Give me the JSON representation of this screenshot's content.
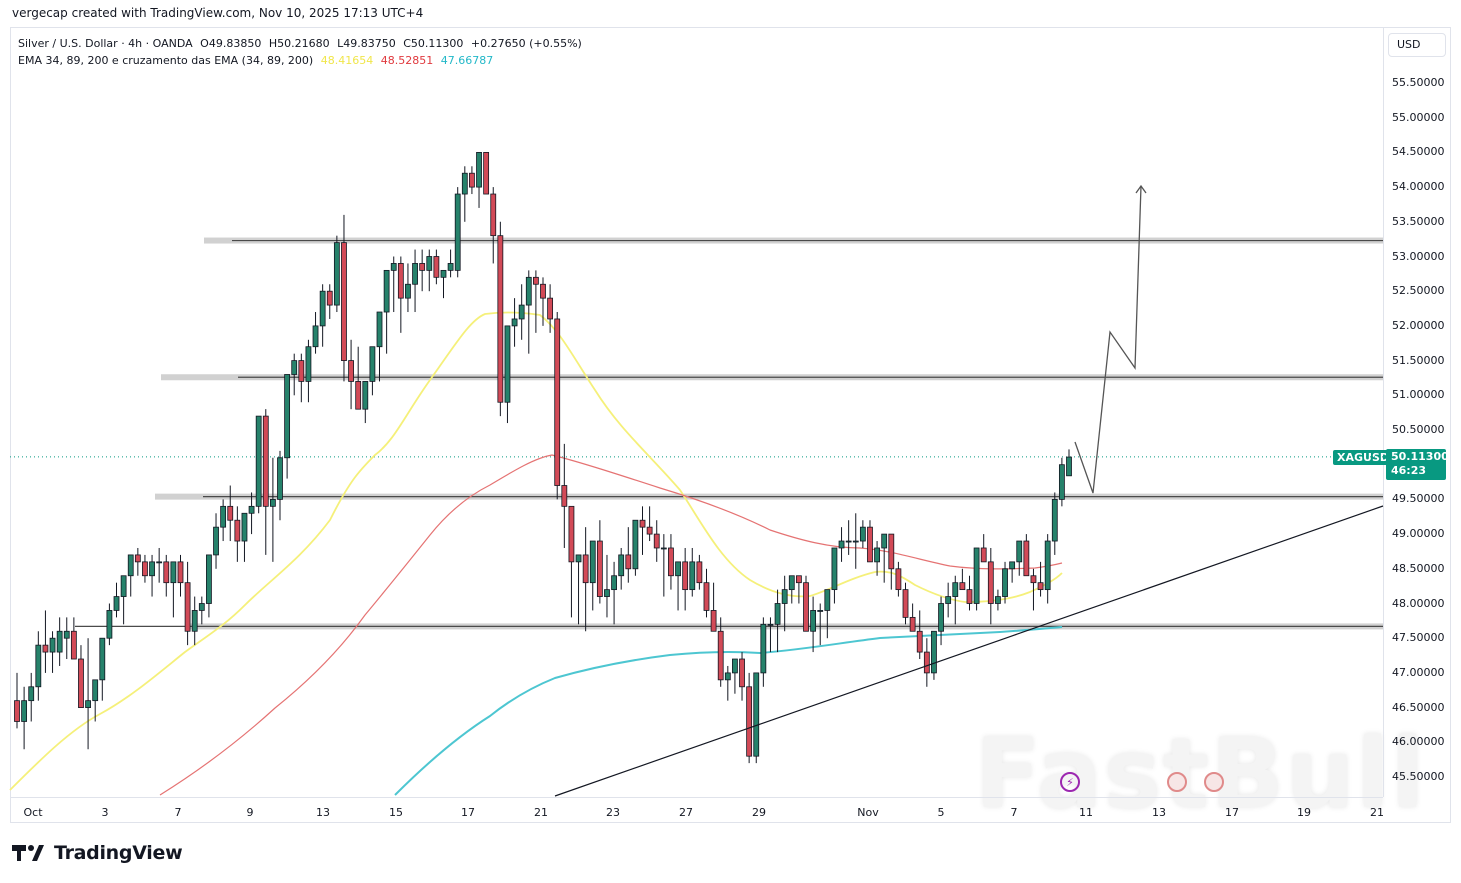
{
  "header": {
    "credit": "vergecap created with TradingView.com, Nov 10, 2025 17:13 UTC+4"
  },
  "legend": {
    "symbol_line": "Silver / U.S. Dollar · 4h · OANDA",
    "open": "O49.83850",
    "high": "H50.21680",
    "low": "L49.83750",
    "close": "C50.11300",
    "change": "+0.27650 (+0.55%)",
    "indicator_name": "EMA 34, 89, 200 e cruzamento das EMA (34, 89, 200)",
    "ema34_value": "48.41654",
    "ema89_value": "48.52851",
    "ema200_value": "47.66787"
  },
  "colors": {
    "up": "#26826b",
    "down": "#d24a57",
    "ema34": "#f5f07a",
    "ema89": "#e57373",
    "ema200": "#4dc6d1",
    "accent": "#089981"
  },
  "price_axis": {
    "currency_button": "USD",
    "ticks": [
      "55.50000",
      "55.00000",
      "54.50000",
      "54.00000",
      "53.50000",
      "53.00000",
      "52.50000",
      "52.00000",
      "51.50000",
      "51.00000",
      "50.50000",
      "49.50000",
      "49.00000",
      "48.50000",
      "48.00000",
      "47.50000",
      "47.00000",
      "46.50000",
      "46.00000",
      "45.50000"
    ],
    "symbol_tag": "XAGUSD",
    "last_price": "50.11300",
    "countdown": "46:23"
  },
  "time_axis": {
    "ticks": [
      "Oct",
      "3",
      "7",
      "9",
      "13",
      "15",
      "17",
      "21",
      "23",
      "27",
      "29",
      "Nov",
      "5",
      "7",
      "11",
      "13",
      "17",
      "19",
      "21"
    ]
  },
  "branding": {
    "logo_text": "TradingView",
    "watermark": "FastBull"
  },
  "chart_data": {
    "type": "candlestick",
    "title": "Silver / U.S. Dollar · 4h · OANDA",
    "xlabel": "",
    "ylabel": "USD",
    "ylim": [
      45.3,
      55.8
    ],
    "x_ticks": [
      "Oct",
      "3",
      "7",
      "9",
      "13",
      "15",
      "17",
      "21",
      "23",
      "27",
      "29",
      "Nov",
      "5",
      "7",
      "11",
      "13",
      "17",
      "19",
      "21"
    ],
    "last": {
      "open": 49.8385,
      "high": 50.2168,
      "low": 49.8375,
      "close": 50.113,
      "change": 0.2765,
      "change_pct": 0.55
    },
    "ema": [
      {
        "name": "EMA 34",
        "value": 48.41654,
        "color": "#f5f07a"
      },
      {
        "name": "EMA 89",
        "value": 48.52851,
        "color": "#e57373"
      },
      {
        "name": "EMA 200",
        "value": 47.66787,
        "color": "#4dc6d1"
      }
    ],
    "horizontal_levels": [
      53.23,
      51.26,
      49.54,
      47.67
    ],
    "trendline": {
      "from": {
        "date": "Oct 21",
        "price": 45.25
      },
      "to": {
        "date": "Nov 21",
        "price": 49.42
      }
    },
    "projection_path": [
      {
        "date": "Nov 10",
        "price": 50.3
      },
      {
        "date": "Nov 10",
        "price": 49.6
      },
      {
        "date": "Nov 11",
        "price": 51.9
      },
      {
        "date": "Nov 12",
        "price": 51.4
      },
      {
        "date": "Nov 12",
        "price": 54.05
      }
    ],
    "candles_ohlc": [
      [
        46.6,
        47.0,
        46.2,
        46.3
      ],
      [
        46.3,
        46.8,
        45.9,
        46.6
      ],
      [
        46.6,
        47.0,
        46.3,
        46.8
      ],
      [
        46.8,
        47.6,
        46.6,
        47.4
      ],
      [
        47.4,
        47.9,
        47.0,
        47.3
      ],
      [
        47.3,
        47.6,
        47.0,
        47.5
      ],
      [
        47.3,
        47.8,
        47.1,
        47.6
      ],
      [
        47.5,
        47.8,
        47.2,
        47.6
      ],
      [
        47.6,
        47.8,
        47.3,
        47.2
      ],
      [
        47.2,
        47.4,
        46.7,
        46.5
      ],
      [
        46.5,
        47.5,
        45.9,
        46.6
      ],
      [
        46.6,
        46.9,
        46.3,
        46.9
      ],
      [
        46.9,
        47.5,
        46.6,
        47.5
      ],
      [
        47.5,
        48.0,
        47.4,
        47.9
      ],
      [
        47.9,
        48.3,
        47.8,
        48.1
      ],
      [
        48.1,
        48.4,
        47.7,
        48.4
      ],
      [
        48.4,
        48.7,
        48.1,
        48.7
      ],
      [
        48.7,
        48.8,
        48.4,
        48.6
      ],
      [
        48.6,
        48.7,
        48.3,
        48.4
      ],
      [
        48.4,
        48.7,
        48.1,
        48.6
      ],
      [
        48.6,
        48.8,
        48.3,
        48.6
      ],
      [
        48.6,
        48.7,
        48.1,
        48.3
      ],
      [
        48.3,
        48.6,
        47.8,
        48.6
      ],
      [
        48.6,
        48.7,
        48.1,
        48.3
      ],
      [
        48.3,
        48.6,
        47.4,
        47.6
      ],
      [
        47.6,
        48.1,
        47.4,
        47.9
      ],
      [
        47.9,
        48.1,
        47.7,
        48.0
      ],
      [
        48.0,
        48.7,
        47.8,
        48.7
      ],
      [
        48.7,
        49.3,
        48.5,
        49.1
      ],
      [
        49.1,
        49.5,
        48.9,
        49.4
      ],
      [
        49.4,
        49.7,
        48.9,
        49.2
      ],
      [
        49.2,
        49.4,
        48.6,
        48.9
      ],
      [
        48.9,
        49.3,
        48.6,
        49.3
      ],
      [
        49.3,
        49.6,
        49.0,
        49.4
      ],
      [
        49.4,
        50.5,
        49.3,
        50.7
      ],
      [
        50.7,
        50.8,
        48.7,
        49.4
      ],
      [
        49.4,
        50.1,
        48.6,
        49.5
      ],
      [
        49.5,
        50.2,
        49.2,
        50.1
      ],
      [
        50.1,
        51.2,
        49.8,
        51.3
      ],
      [
        51.3,
        51.6,
        51.0,
        51.5
      ],
      [
        51.5,
        51.6,
        50.9,
        51.2
      ],
      [
        51.2,
        51.8,
        50.9,
        51.7
      ],
      [
        51.7,
        52.2,
        51.6,
        52.0
      ],
      [
        52.0,
        52.6,
        51.7,
        52.5
      ],
      [
        52.5,
        52.6,
        52.1,
        52.3
      ],
      [
        52.3,
        53.3,
        52.2,
        53.2
      ],
      [
        53.2,
        53.6,
        51.2,
        51.5
      ],
      [
        51.5,
        51.8,
        50.8,
        51.2
      ],
      [
        51.2,
        51.7,
        50.8,
        50.8
      ],
      [
        50.8,
        51.1,
        50.6,
        51.2
      ],
      [
        51.2,
        51.6,
        51.0,
        51.7
      ],
      [
        51.7,
        52.1,
        51.2,
        52.2
      ],
      [
        52.2,
        52.6,
        51.6,
        52.8
      ],
      [
        52.8,
        53.0,
        52.2,
        52.9
      ],
      [
        52.9,
        53.0,
        51.9,
        52.4
      ],
      [
        52.4,
        52.9,
        52.2,
        52.6
      ],
      [
        52.6,
        53.1,
        52.2,
        52.9
      ],
      [
        52.9,
        53.1,
        52.5,
        52.8
      ],
      [
        52.8,
        53.1,
        52.5,
        53.0
      ],
      [
        53.0,
        53.1,
        52.6,
        52.7
      ],
      [
        52.7,
        52.8,
        52.4,
        52.8
      ],
      [
        52.8,
        53.1,
        52.7,
        52.9
      ],
      [
        52.8,
        54.0,
        52.7,
        53.9
      ],
      [
        53.9,
        54.3,
        53.5,
        54.2
      ],
      [
        54.2,
        54.3,
        53.9,
        54.0
      ],
      [
        54.0,
        54.5,
        53.7,
        54.5
      ],
      [
        54.5,
        54.5,
        53.9,
        53.9
      ],
      [
        53.9,
        54.0,
        52.9,
        53.3
      ],
      [
        53.3,
        53.5,
        50.7,
        50.9
      ],
      [
        50.9,
        52.0,
        50.6,
        52.0
      ],
      [
        52.0,
        52.4,
        51.7,
        52.1
      ],
      [
        52.1,
        52.6,
        51.8,
        52.3
      ],
      [
        52.3,
        52.8,
        51.6,
        52.7
      ],
      [
        52.7,
        52.8,
        51.9,
        52.6
      ],
      [
        52.6,
        52.7,
        52.0,
        52.4
      ],
      [
        52.4,
        52.6,
        51.9,
        52.1
      ],
      [
        52.1,
        52.2,
        49.5,
        49.7
      ],
      [
        49.7,
        50.3,
        48.8,
        49.4
      ],
      [
        49.4,
        49.2,
        47.8,
        48.6
      ],
      [
        48.6,
        48.7,
        47.7,
        48.7
      ],
      [
        48.7,
        49.1,
        47.6,
        48.3
      ],
      [
        48.3,
        48.9,
        47.9,
        48.9
      ],
      [
        48.9,
        49.2,
        48.0,
        48.1
      ],
      [
        48.1,
        48.7,
        47.8,
        48.2
      ],
      [
        48.2,
        48.6,
        47.7,
        48.4
      ],
      [
        48.4,
        48.8,
        48.2,
        48.7
      ],
      [
        48.7,
        49.1,
        48.3,
        48.5
      ],
      [
        48.5,
        49.2,
        48.4,
        49.2
      ],
      [
        49.2,
        49.4,
        48.7,
        49.1
      ],
      [
        49.1,
        49.4,
        48.9,
        49.0
      ],
      [
        49.0,
        49.2,
        48.6,
        48.8
      ],
      [
        48.8,
        49.0,
        48.1,
        48.8
      ],
      [
        48.8,
        49.0,
        48.2,
        48.4
      ],
      [
        48.4,
        48.6,
        47.9,
        48.6
      ],
      [
        48.6,
        48.8,
        47.9,
        48.2
      ],
      [
        48.2,
        48.8,
        48.1,
        48.6
      ],
      [
        48.6,
        48.7,
        48.2,
        48.3
      ],
      [
        48.3,
        48.5,
        47.8,
        47.9
      ],
      [
        47.9,
        48.3,
        47.6,
        47.6
      ],
      [
        47.6,
        47.8,
        46.8,
        46.9
      ],
      [
        46.9,
        47.1,
        46.6,
        47.0
      ],
      [
        47.0,
        47.2,
        46.7,
        47.2
      ],
      [
        47.2,
        47.3,
        46.6,
        46.8
      ],
      [
        46.8,
        47.0,
        45.7,
        45.8
      ],
      [
        45.8,
        47.0,
        45.7,
        47.0
      ],
      [
        47.0,
        47.8,
        46.8,
        47.7
      ],
      [
        47.7,
        47.8,
        47.3,
        47.7
      ],
      [
        47.7,
        48.2,
        47.3,
        48.0
      ],
      [
        48.0,
        48.4,
        47.6,
        48.2
      ],
      [
        48.2,
        48.4,
        48.0,
        48.4
      ],
      [
        48.4,
        48.4,
        48.0,
        48.3
      ],
      [
        48.3,
        48.4,
        47.8,
        47.6
      ],
      [
        47.6,
        48.1,
        47.3,
        47.9
      ],
      [
        47.9,
        48.0,
        47.4,
        47.9
      ],
      [
        47.9,
        48.2,
        47.5,
        48.2
      ],
      [
        48.2,
        48.7,
        48.0,
        48.8
      ],
      [
        48.8,
        49.1,
        48.6,
        48.9
      ],
      [
        48.9,
        49.2,
        48.7,
        48.9
      ],
      [
        48.9,
        49.3,
        48.5,
        48.9
      ],
      [
        48.9,
        49.2,
        48.8,
        49.1
      ],
      [
        49.1,
        49.2,
        48.6,
        48.6
      ],
      [
        48.6,
        48.9,
        48.4,
        48.8
      ],
      [
        48.8,
        49.0,
        48.3,
        49.0
      ],
      [
        49.0,
        49.0,
        48.2,
        48.5
      ],
      [
        48.5,
        48.6,
        48.1,
        48.2
      ],
      [
        48.2,
        48.3,
        47.7,
        47.8
      ],
      [
        47.8,
        48.0,
        47.6,
        47.6
      ],
      [
        47.6,
        47.9,
        47.2,
        47.3
      ],
      [
        47.3,
        47.5,
        46.8,
        47.0
      ],
      [
        47.0,
        47.3,
        46.9,
        47.6
      ],
      [
        47.6,
        48.1,
        47.4,
        48.0
      ],
      [
        48.0,
        48.3,
        47.8,
        48.1
      ],
      [
        48.1,
        48.4,
        47.7,
        48.3
      ],
      [
        48.3,
        48.5,
        48.2,
        48.2
      ],
      [
        48.2,
        48.4,
        47.9,
        48.0
      ],
      [
        48.0,
        48.7,
        47.9,
        48.8
      ],
      [
        48.8,
        49.0,
        48.6,
        48.6
      ],
      [
        48.6,
        48.8,
        47.7,
        48.0
      ],
      [
        48.0,
        48.2,
        47.9,
        48.1
      ],
      [
        48.1,
        48.6,
        48.0,
        48.5
      ],
      [
        48.5,
        48.6,
        48.3,
        48.6
      ],
      [
        48.6,
        48.9,
        48.4,
        48.9
      ],
      [
        48.9,
        49.0,
        48.4,
        48.4
      ],
      [
        48.4,
        48.5,
        47.9,
        48.3
      ],
      [
        48.3,
        48.6,
        48.1,
        48.2
      ],
      [
        48.2,
        49.0,
        48.0,
        48.9
      ],
      [
        48.9,
        49.6,
        48.7,
        49.5
      ],
      [
        49.5,
        50.1,
        49.4,
        50.0
      ],
      [
        49.84,
        50.22,
        49.84,
        50.11
      ]
    ]
  }
}
